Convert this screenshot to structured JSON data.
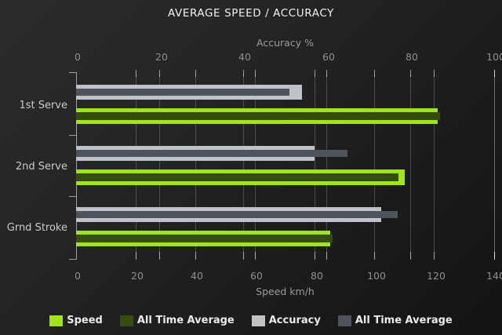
{
  "chart_data": {
    "type": "bar",
    "orientation": "horizontal",
    "title": "AVERAGE SPEED / ACCURACY",
    "categories": [
      "1st Serve",
      "2nd Serve",
      "Grnd Stroke"
    ],
    "series": [
      {
        "name": "Speed",
        "axis": "bottom",
        "layer": "outer",
        "color": "#a0e51b",
        "values": [
          121,
          110,
          85
        ]
      },
      {
        "name": "All Time Average",
        "axis": "bottom",
        "layer": "inner",
        "color": "#354d0e",
        "values": [
          122,
          108,
          86
        ]
      },
      {
        "name": "Accuracy",
        "axis": "top",
        "layer": "outer",
        "color": "#bfc3c7",
        "values": [
          54,
          57,
          73
        ]
      },
      {
        "name": "All Time Average",
        "axis": "top",
        "layer": "inner",
        "color": "#4d545c",
        "values": [
          51,
          65,
          77
        ]
      }
    ],
    "top_axis": {
      "title": "Accuracy %",
      "min": 0,
      "max": 100,
      "ticks": [
        0,
        20,
        40,
        60,
        80,
        100
      ]
    },
    "bottom_axis": {
      "title": "Speed km/h",
      "min": 0,
      "max": 140,
      "ticks": [
        0,
        20,
        40,
        60,
        80,
        100,
        120,
        140
      ]
    },
    "grid": true,
    "legend_position": "bottom"
  }
}
